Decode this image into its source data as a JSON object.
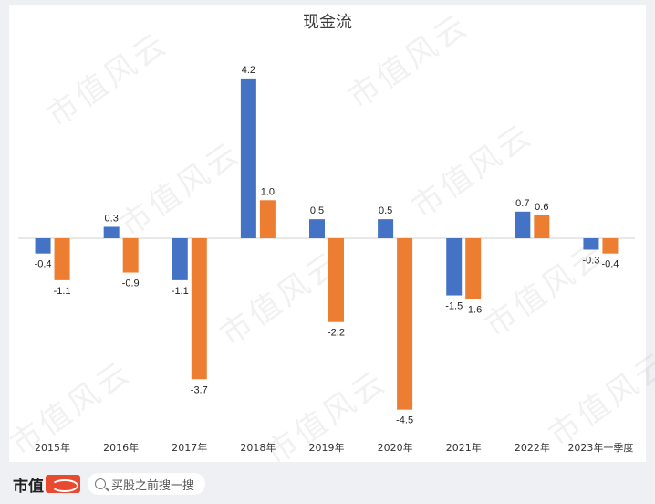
{
  "footer": {
    "brand": "市值",
    "search_text": "买股之前搜一搜"
  },
  "watermark_text": "市值风云",
  "colors": {
    "series1": "#4472c4",
    "series2": "#ed7d31"
  },
  "chart_data": {
    "type": "bar",
    "title": "现金流",
    "categories": [
      "2015年",
      "2016年",
      "2017年",
      "2018年",
      "2019年",
      "2020年",
      "2021年",
      "2022年",
      "2023年一季度"
    ],
    "series": [
      {
        "values": [
          -0.4,
          0.3,
          -1.1,
          4.2,
          0.5,
          0.5,
          -1.5,
          0.7,
          -0.3
        ],
        "color": "#4472c4"
      },
      {
        "values": [
          -1.1,
          -0.9,
          -3.7,
          1.0,
          -2.2,
          -4.5,
          -1.6,
          0.6,
          -0.4
        ],
        "color": "#ed7d31"
      }
    ],
    "grid": false,
    "legend": "none"
  }
}
